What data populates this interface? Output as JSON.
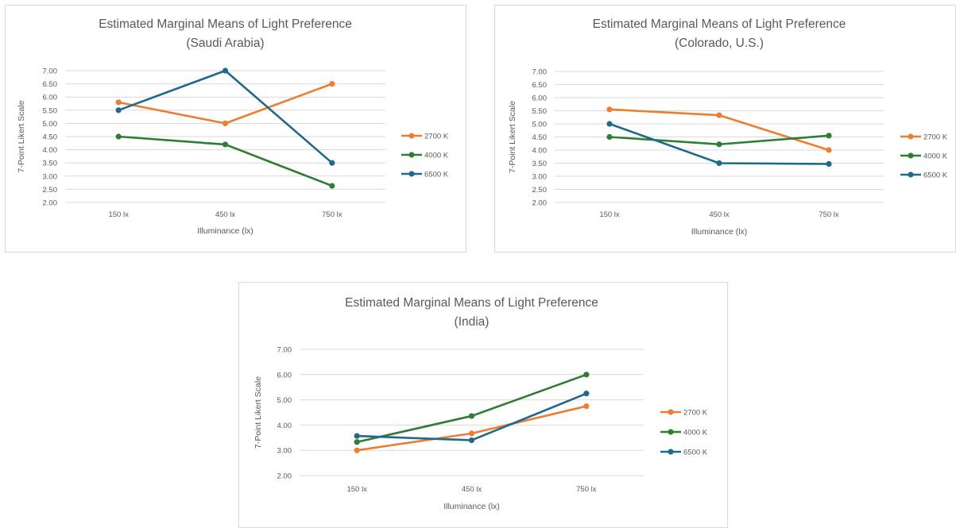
{
  "chart_data": [
    {
      "type": "line",
      "title": "Estimated Marginal Means of Light Preference",
      "subtitle": "(Saudi Arabia)",
      "xlabel": "Illuminance (lx)",
      "ylabel": "7-Point Likert Scale",
      "categories": [
        "150 lx",
        "450 lx",
        "750 lx"
      ],
      "ylim": [
        2.0,
        7.0
      ],
      "yticks": [
        "2.00",
        "2.50",
        "3.00",
        "3.50",
        "4.00",
        "4.50",
        "5.00",
        "5.50",
        "6.00",
        "6.50",
        "7.00"
      ],
      "grid": true,
      "legend_position": "right",
      "series": [
        {
          "name": "2700 K",
          "color": "#ED7D31",
          "values": [
            5.8,
            5.0,
            6.5
          ]
        },
        {
          "name": "4000 K",
          "color": "#2E7D32",
          "values": [
            4.5,
            4.2,
            2.63
          ]
        },
        {
          "name": "6500 K",
          "color": "#1F6A8A",
          "values": [
            5.5,
            7.0,
            3.5
          ]
        }
      ]
    },
    {
      "type": "line",
      "title": "Estimated Marginal Means of Light Preference",
      "subtitle": "(Colorado, U.S.)",
      "xlabel": "Illuminance (lx)",
      "ylabel": "7-Point Likert Scale",
      "categories": [
        "150 lx",
        "450 lx",
        "750 lx"
      ],
      "ylim": [
        2.0,
        7.0
      ],
      "yticks": [
        "2.00",
        "2.50",
        "3.00",
        "3.50",
        "4.00",
        "4.50",
        "5.00",
        "5.50",
        "6.00",
        "6.50",
        "7.00"
      ],
      "grid": true,
      "legend_position": "right",
      "series": [
        {
          "name": "2700 K",
          "color": "#ED7D31",
          "values": [
            5.55,
            5.33,
            4.0
          ]
        },
        {
          "name": "4000 K",
          "color": "#2E7D32",
          "values": [
            4.5,
            4.22,
            4.55
          ]
        },
        {
          "name": "6500 K",
          "color": "#1F6A8A",
          "values": [
            5.0,
            3.5,
            3.47
          ]
        }
      ]
    },
    {
      "type": "line",
      "title": "Estimated Marginal Means of Light Preference",
      "subtitle": "(India)",
      "xlabel": "Illuminance (lx)",
      "ylabel": "7-Point Likert Scale",
      "categories": [
        "150 lx",
        "450 lx",
        "750 lx"
      ],
      "ylim": [
        2.0,
        7.0
      ],
      "yticks": [
        "2.00",
        "3.00",
        "4.00",
        "5.00",
        "6.00",
        "7.00"
      ],
      "grid": true,
      "legend_position": "right",
      "series": [
        {
          "name": "2700 K",
          "color": "#ED7D31",
          "values": [
            3.0,
            3.67,
            4.75
          ]
        },
        {
          "name": "4000 K",
          "color": "#2E7D32",
          "values": [
            3.33,
            4.36,
            6.0
          ]
        },
        {
          "name": "6500 K",
          "color": "#1F6A8A",
          "values": [
            3.57,
            3.4,
            5.25
          ]
        }
      ]
    }
  ]
}
